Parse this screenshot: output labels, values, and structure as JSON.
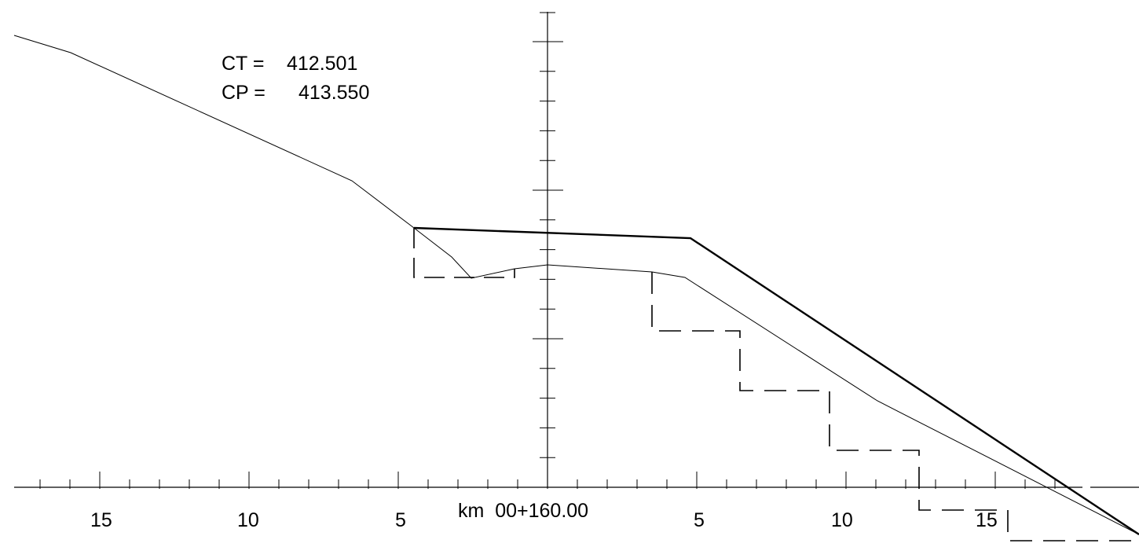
{
  "annotations": {
    "ct_label": "CT =",
    "ct_value": "412.501",
    "cp_label": "CP =",
    "cp_value": "413.550"
  },
  "station": {
    "label": "km  00+160.00"
  },
  "axis": {
    "tick_labels_left": [
      "15",
      "10",
      "5"
    ],
    "tick_labels_right": [
      "5",
      "10",
      "15"
    ]
  },
  "colors": {
    "stroke": "#000000",
    "background": "#ffffff"
  }
}
